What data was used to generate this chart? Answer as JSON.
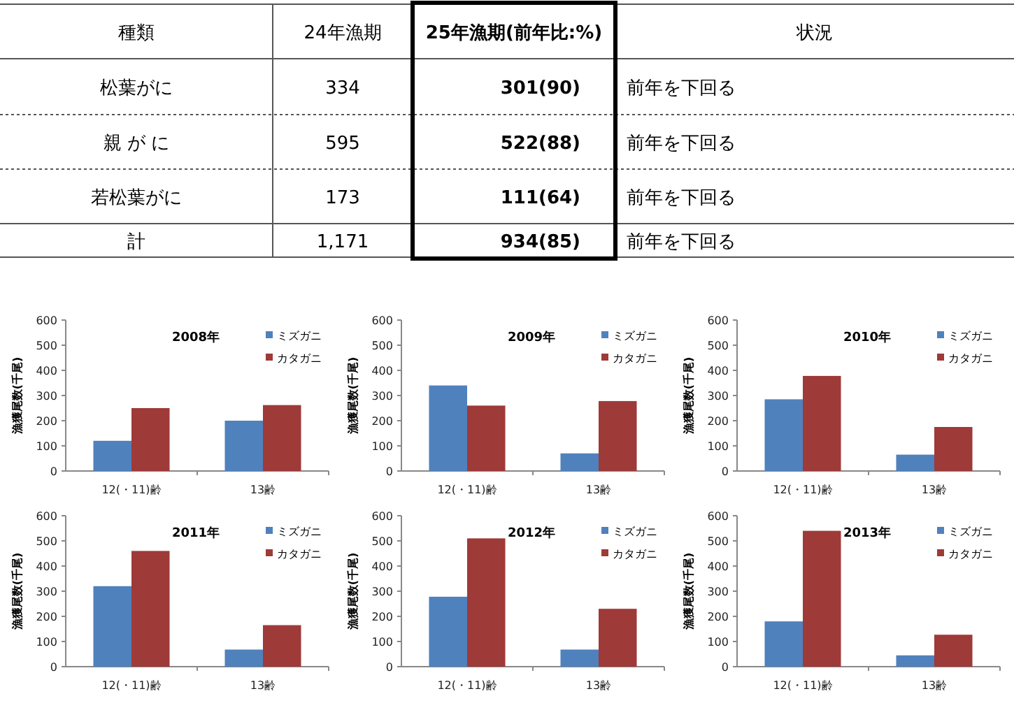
{
  "chart_data": [
    {
      "type": "other",
      "annotations": [
        "種類",
        "24年漁期",
        "25年漁期(前年比:%)",
        "状況",
        "松葉がに",
        "334",
        "301(90)",
        "前年を下回る",
        "親 が に",
        "595",
        "522(88)",
        "前年を下回る",
        "若松葉がに",
        "173",
        "111(64)",
        "前年を下回る",
        "計",
        "1,171",
        "934(85)",
        "前年を下回る"
      ]
    },
    {
      "type": "bar",
      "title": "2008年",
      "ylabel": "漁獲尾数(千尾)",
      "categories": [
        "12(・11)齢",
        "13齢"
      ],
      "ylim": [
        0,
        600
      ],
      "yticks": [
        0,
        100,
        200,
        300,
        400,
        500,
        600
      ],
      "legend": "top right",
      "series": [
        {
          "name": "ミズガニ",
          "color": "#4f81bd",
          "values": [
            120,
            200
          ]
        },
        {
          "name": "カタガニ",
          "color": "#9e3a38",
          "values": [
            250,
            262
          ]
        }
      ]
    },
    {
      "type": "bar",
      "title": "2009年",
      "ylabel": "漁獲尾数(千尾)",
      "categories": [
        "12(・11)齢",
        "13齢"
      ],
      "ylim": [
        0,
        600
      ],
      "yticks": [
        0,
        100,
        200,
        300,
        400,
        500,
        600
      ],
      "legend": "top right",
      "series": [
        {
          "name": "ミズガニ",
          "color": "#4f81bd",
          "values": [
            340,
            70
          ]
        },
        {
          "name": "カタガニ",
          "color": "#9e3a38",
          "values": [
            260,
            278
          ]
        }
      ]
    },
    {
      "type": "bar",
      "title": "2010年",
      "ylabel": "漁獲尾数(千尾)",
      "categories": [
        "12(・11)齢",
        "13齢"
      ],
      "ylim": [
        0,
        600
      ],
      "yticks": [
        0,
        100,
        200,
        300,
        400,
        500,
        600
      ],
      "legend": "top right",
      "series": [
        {
          "name": "ミズガニ",
          "color": "#4f81bd",
          "values": [
            285,
            65
          ]
        },
        {
          "name": "カタガニ",
          "color": "#9e3a38",
          "values": [
            378,
            175
          ]
        }
      ]
    },
    {
      "type": "bar",
      "title": "2011年",
      "ylabel": "漁獲尾数(千尾)",
      "categories": [
        "12(・11)齢",
        "13齢"
      ],
      "ylim": [
        0,
        600
      ],
      "yticks": [
        0,
        100,
        200,
        300,
        400,
        500,
        600
      ],
      "legend": "top right",
      "series": [
        {
          "name": "ミズガニ",
          "color": "#4f81bd",
          "values": [
            320,
            68
          ]
        },
        {
          "name": "カタガニ",
          "color": "#9e3a38",
          "values": [
            460,
            165
          ]
        }
      ]
    },
    {
      "type": "bar",
      "title": "2012年",
      "ylabel": "漁獲尾数(千尾)",
      "categories": [
        "12(・11)齢",
        "13齢"
      ],
      "ylim": [
        0,
        600
      ],
      "yticks": [
        0,
        100,
        200,
        300,
        400,
        500,
        600
      ],
      "legend": "top right",
      "series": [
        {
          "name": "ミズガニ",
          "color": "#4f81bd",
          "values": [
            278,
            68
          ]
        },
        {
          "name": "カタガニ",
          "color": "#9e3a38",
          "values": [
            510,
            230
          ]
        }
      ]
    },
    {
      "type": "bar",
      "title": "2013年",
      "ylabel": "漁獲尾数(千尾)",
      "categories": [
        "12(・11)齢",
        "13齢"
      ],
      "ylim": [
        0,
        600
      ],
      "yticks": [
        0,
        100,
        200,
        300,
        400,
        500,
        600
      ],
      "legend": "top right",
      "series": [
        {
          "name": "ミズガニ",
          "color": "#4f81bd",
          "values": [
            180,
            45
          ]
        },
        {
          "name": "カタガニ",
          "color": "#9e3a38",
          "values": [
            540,
            127
          ]
        }
      ]
    }
  ]
}
